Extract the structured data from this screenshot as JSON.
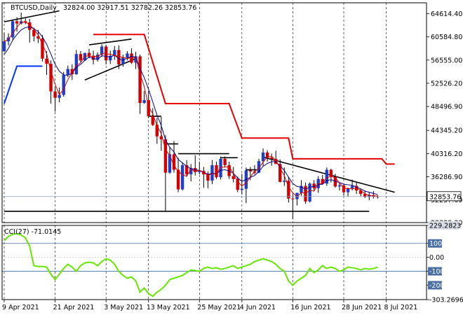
{
  "header": {
    "symbol": "BTCUSD,Daily",
    "ohlc": "32824.00 32917.51 32782.26 32853.76"
  },
  "colors": {
    "background": "#ffffff",
    "grid": "#000000",
    "candle_up": "#1f3fc8",
    "candle_down": "#d40000",
    "wick": "#000000",
    "ma_fast": "#00008b",
    "ma_slow": "#d40000",
    "channel_upper": "#e60000",
    "channel_lower": "#0033ff",
    "trendline": "#000000",
    "cci_line": "#66e600",
    "cci_level": "#4a6fa5",
    "price_label_bg": "#ffffff"
  },
  "chart_data": [
    {
      "type": "candlestick",
      "ylim": [
        28328.3,
        66500
      ],
      "y_ticks": [
        "64614.40",
        "60584.80",
        "56555.00",
        "52526.20",
        "48496.90",
        "44345.20",
        "40316.20",
        "36286.90",
        "32257.60",
        "28328.30"
      ],
      "last_price_label": "32853.76",
      "x_labels": [
        "9 Apr 2021",
        "21 Apr 2021",
        "3 May 2021",
        "13 May 2021",
        "25 May 2021",
        "4 Jun 2021",
        "16 Jun 2021",
        "28 Jun 2021",
        "8 Jul 2021"
      ],
      "x_label_index": [
        0,
        12,
        24,
        34,
        46,
        56,
        68,
        80,
        90
      ],
      "candles": [
        [
          58100,
          61300,
          57900,
          59800
        ],
        [
          59800,
          61200,
          59100,
          60500
        ],
        [
          60500,
          63600,
          60100,
          63300
        ],
        [
          63300,
          64000,
          61500,
          62900
        ],
        [
          62900,
          64800,
          62700,
          63300
        ],
        [
          63300,
          63800,
          62800,
          63100
        ],
        [
          63100,
          63700,
          59600,
          61800
        ],
        [
          61800,
          62200,
          59800,
          60700
        ],
        [
          60700,
          61800,
          59500,
          60300
        ],
        [
          60300,
          60900,
          56300,
          56800
        ],
        [
          56800,
          58100,
          54000,
          55900
        ],
        [
          55900,
          56500,
          49000,
          51100
        ],
        [
          51100,
          52000,
          47600,
          50000
        ],
        [
          50000,
          51800,
          49200,
          50500
        ],
        [
          50500,
          54500,
          50200,
          54000
        ],
        [
          54000,
          55600,
          53600,
          55000
        ],
        [
          55000,
          55800,
          53100,
          54100
        ],
        [
          54100,
          58300,
          54000,
          57600
        ],
        [
          57600,
          58100,
          56200,
          56500
        ],
        [
          56500,
          57700,
          56400,
          57800
        ],
        [
          57800,
          58500,
          56900,
          57300
        ],
        [
          57300,
          58200,
          55800,
          56600
        ],
        [
          56600,
          57900,
          56300,
          57500
        ],
        [
          57500,
          59300,
          57100,
          58900
        ],
        [
          58900,
          59200,
          55800,
          56500
        ],
        [
          56500,
          58200,
          55900,
          57300
        ],
        [
          57300,
          59000,
          56600,
          58300
        ],
        [
          58300,
          59100,
          55000,
          55800
        ],
        [
          55800,
          57500,
          55400,
          57000
        ],
        [
          57000,
          58100,
          56500,
          57700
        ],
        [
          57700,
          58600,
          55900,
          56100
        ],
        [
          56100,
          58000,
          55000,
          57200
        ],
        [
          57200,
          57500,
          47200,
          49100
        ],
        [
          49100,
          51200,
          49000,
          49600
        ],
        [
          49600,
          51200,
          46500,
          46800
        ],
        [
          46800,
          48200,
          45100,
          45300
        ],
        [
          45300,
          46500,
          42000,
          43300
        ],
        [
          43300,
          46700,
          40800,
          42800
        ],
        [
          42800,
          43500,
          30300,
          37000
        ],
        [
          37000,
          41500,
          36800,
          40200
        ],
        [
          40200,
          42500,
          37000,
          37500
        ],
        [
          37500,
          39600,
          33600,
          34100
        ],
        [
          34100,
          38800,
          33900,
          38300
        ],
        [
          38300,
          39200,
          36300,
          36700
        ],
        [
          36700,
          38500,
          35500,
          37800
        ],
        [
          37800,
          40000,
          36500,
          37100
        ],
        [
          37100,
          38900,
          36700,
          37300
        ],
        [
          37300,
          38000,
          34400,
          36700
        ],
        [
          36700,
          37200,
          34300,
          35600
        ],
        [
          35600,
          39200,
          35000,
          38300
        ],
        [
          38300,
          38900,
          35900,
          36200
        ],
        [
          36200,
          39800,
          35800,
          39400
        ],
        [
          39400,
          39800,
          37900,
          38300
        ],
        [
          38300,
          38900,
          35900,
          36400
        ],
        [
          36400,
          38000,
          35300,
          35900
        ],
        [
          35900,
          36300,
          33600,
          34000
        ],
        [
          34000,
          36800,
          33200,
          34200
        ],
        [
          34200,
          37900,
          31700,
          37400
        ],
        [
          37400,
          38000,
          35700,
          37200
        ],
        [
          37200,
          38300,
          36700,
          37000
        ],
        [
          37000,
          39400,
          36900,
          39000
        ],
        [
          39000,
          41200,
          38200,
          40500
        ],
        [
          40500,
          40900,
          38900,
          39600
        ],
        [
          39600,
          40300,
          38200,
          39400
        ],
        [
          39400,
          40800,
          38700,
          38500
        ],
        [
          38500,
          39300,
          35300,
          35400
        ],
        [
          35400,
          37900,
          34700,
          35600
        ],
        [
          35600,
          36300,
          31800,
          32500
        ],
        [
          32500,
          33300,
          28900,
          32400
        ],
        [
          32400,
          33500,
          31300,
          33500
        ],
        [
          33500,
          35700,
          33000,
          34700
        ],
        [
          34700,
          35300,
          31600,
          32000
        ],
        [
          32000,
          35300,
          31800,
          35100
        ],
        [
          35100,
          35700,
          33800,
          34300
        ],
        [
          34300,
          36400,
          33500,
          35900
        ],
        [
          35900,
          36600,
          34900,
          35100
        ],
        [
          35100,
          37900,
          34700,
          37500
        ],
        [
          37500,
          37700,
          35300,
          36300
        ],
        [
          36300,
          36800,
          34400,
          34600
        ],
        [
          34600,
          35300,
          33900,
          34800
        ],
        [
          34800,
          35100,
          33000,
          33600
        ],
        [
          33600,
          34400,
          32800,
          34300
        ],
        [
          34300,
          35800,
          33900,
          34700
        ],
        [
          34700,
          35300,
          33300,
          33900
        ],
        [
          33900,
          34200,
          32900,
          33300
        ],
        [
          33300,
          33900,
          32600,
          32800
        ],
        [
          32800,
          33600,
          32200,
          33100
        ],
        [
          33100,
          33800,
          32500,
          32900
        ],
        [
          32900,
          33100,
          32500,
          32850
        ]
      ],
      "moving_average_fast": [
        57500,
        58600,
        60000,
        61000,
        61800,
        62200,
        62300,
        62000,
        61500,
        60600,
        59300,
        57600,
        55800,
        54600,
        54000,
        53900,
        54300,
        55300,
        55800,
        56500,
        57100,
        56800,
        56700,
        57300,
        57200,
        57100,
        57400,
        56800,
        56500,
        56900,
        57200,
        57100,
        55100,
        53500,
        51500,
        49300,
        47000,
        45200,
        42700,
        41400,
        40600,
        39300,
        38700,
        38100,
        37700,
        37500,
        37400,
        37100,
        36700,
        36900,
        36800,
        37400,
        37500,
        37300,
        36900,
        36100,
        35500,
        35800,
        36200,
        36500,
        37200,
        38100,
        38600,
        38900,
        38900,
        38200,
        37400,
        36200,
        35100,
        34600,
        34500,
        34100,
        34500,
        34600,
        34900,
        35000,
        35600,
        35800,
        35500,
        35300,
        35000,
        34900,
        34800,
        34500,
        34200,
        33800,
        33600,
        33400,
        33200
      ]
    },
    {
      "type": "line",
      "title": "CCI(27) -71.0145",
      "ylim": [
        -303.2696,
        229.2823
      ],
      "y_ticks": [
        "229.2823",
        "100",
        "0.00",
        "-100",
        "-200",
        "-303.2696"
      ],
      "levels": [
        100,
        -100
      ],
      "values": [
        120,
        150,
        165,
        170,
        160,
        140,
        80,
        -60,
        -65,
        -65,
        -70,
        -120,
        -160,
        -120,
        -80,
        -50,
        -70,
        -100,
        -60,
        -40,
        -35,
        -40,
        -60,
        -30,
        -10,
        -20,
        -50,
        -100,
        -130,
        -150,
        -140,
        -170,
        -250,
        -220,
        -260,
        -280,
        -250,
        -230,
        -200,
        -160,
        -150,
        -140,
        -130,
        -110,
        -90,
        -95,
        -100,
        -80,
        -70,
        -80,
        -75,
        -85,
        -80,
        -70,
        -60,
        -80,
        -70,
        -60,
        -50,
        -30,
        -20,
        -10,
        -20,
        -30,
        -50,
        -80,
        -100,
        -170,
        -200,
        -170,
        -150,
        -130,
        -80,
        -110,
        -90,
        -60,
        -80,
        -70,
        -80,
        -100,
        -90,
        -70,
        -75,
        -80,
        -90,
        -80,
        -85,
        -80,
        -71
      ]
    }
  ]
}
